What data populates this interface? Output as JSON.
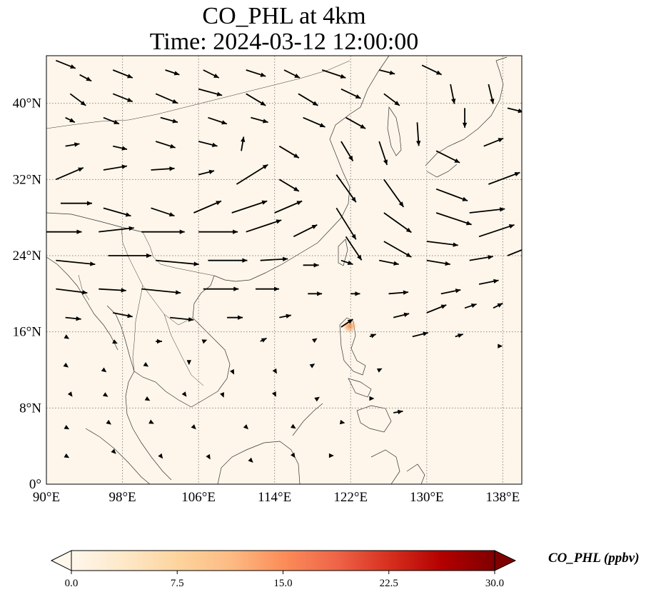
{
  "figure": {
    "title_line1": "CO_PHL at 4km",
    "title_line2": "Time: 2024-03-12 12:00:00"
  },
  "map": {
    "extent": {
      "lon_min": 90,
      "lon_max": 140,
      "lat_min": 0,
      "lat_max": 45
    },
    "background_color": "#fef6ea",
    "gridline_style": "dotted",
    "lon_ticks": [
      {
        "value": 90,
        "label": "90°E"
      },
      {
        "value": 98,
        "label": "98°E"
      },
      {
        "value": 106,
        "label": "106°E"
      },
      {
        "value": 114,
        "label": "114°E"
      },
      {
        "value": 122,
        "label": "122°E"
      },
      {
        "value": 130,
        "label": "130°E"
      },
      {
        "value": 138,
        "label": "138°E"
      }
    ],
    "lat_ticks": [
      {
        "value": 0,
        "label": "0°"
      },
      {
        "value": 8,
        "label": "8°N"
      },
      {
        "value": 16,
        "label": "16°N"
      },
      {
        "value": 24,
        "label": "24°N"
      },
      {
        "value": 32,
        "label": "32°N"
      },
      {
        "value": 40,
        "label": "40°N"
      }
    ],
    "hotspot": {
      "lon": 121.9,
      "lat": 16.6,
      "color": "#f4a460"
    }
  },
  "colorbar": {
    "label": "CO_PHL (ppbv)",
    "min": 0.0,
    "max": 30.0,
    "extend": "both",
    "colormap": "OrRd",
    "colors": [
      "#fff7ec",
      "#fee8c8",
      "#fdd49e",
      "#fdbb84",
      "#fc8d59",
      "#ef6548",
      "#d7301f",
      "#b30000",
      "#7f0000"
    ],
    "ticks": [
      {
        "value": 0.0,
        "label": "0.0"
      },
      {
        "value": 7.5,
        "label": "7.5"
      },
      {
        "value": 15.0,
        "label": "15.0"
      },
      {
        "value": 22.5,
        "label": "22.5"
      },
      {
        "value": 30.0,
        "label": "30.0"
      }
    ]
  },
  "wind_vectors": [
    {
      "lon": 91.0,
      "lat": 44.5,
      "u": 2.5,
      "v": -1.0
    },
    {
      "lon": 93.5,
      "lat": 43.0,
      "u": 1.5,
      "v": -0.8
    },
    {
      "lon": 97.0,
      "lat": 43.5,
      "u": 2.5,
      "v": -1.0
    },
    {
      "lon": 102.5,
      "lat": 43.5,
      "u": 1.8,
      "v": -0.6
    },
    {
      "lon": 106.5,
      "lat": 43.5,
      "u": 2.0,
      "v": -1.0
    },
    {
      "lon": 111.0,
      "lat": 43.5,
      "u": 2.5,
      "v": -0.8
    },
    {
      "lon": 115.0,
      "lat": 43.5,
      "u": 2.0,
      "v": -1.0
    },
    {
      "lon": 119.0,
      "lat": 43.5,
      "u": 3.0,
      "v": -1.0
    },
    {
      "lon": 125.0,
      "lat": 43.5,
      "u": 2.0,
      "v": -0.5
    },
    {
      "lon": 129.5,
      "lat": 44.0,
      "u": 2.5,
      "v": -1.2
    },
    {
      "lon": 92.5,
      "lat": 41.0,
      "u": 2.0,
      "v": -1.5
    },
    {
      "lon": 97.0,
      "lat": 41.0,
      "u": 2.5,
      "v": -1.0
    },
    {
      "lon": 101.5,
      "lat": 41.0,
      "u": 2.8,
      "v": -1.2
    },
    {
      "lon": 106.0,
      "lat": 41.5,
      "u": 3.0,
      "v": -0.8
    },
    {
      "lon": 111.0,
      "lat": 41.0,
      "u": 2.5,
      "v": -1.5
    },
    {
      "lon": 116.5,
      "lat": 41.0,
      "u": 2.5,
      "v": -1.5
    },
    {
      "lon": 121.0,
      "lat": 41.5,
      "u": 2.5,
      "v": -1.2
    },
    {
      "lon": 125.5,
      "lat": 41.0,
      "u": 2.0,
      "v": -1.5
    },
    {
      "lon": 132.5,
      "lat": 42.0,
      "u": 0.5,
      "v": -2.5
    },
    {
      "lon": 136.5,
      "lat": 42.0,
      "u": 0.6,
      "v": -2.5
    },
    {
      "lon": 92.0,
      "lat": 38.5,
      "u": 1.2,
      "v": -0.6
    },
    {
      "lon": 96.0,
      "lat": 38.5,
      "u": 2.0,
      "v": -0.8
    },
    {
      "lon": 102.0,
      "lat": 38.5,
      "u": 2.2,
      "v": -0.6
    },
    {
      "lon": 107.0,
      "lat": 38.5,
      "u": 2.4,
      "v": -0.8
    },
    {
      "lon": 111.5,
      "lat": 38.5,
      "u": 2.2,
      "v": -0.6
    },
    {
      "lon": 117.0,
      "lat": 38.5,
      "u": 2.8,
      "v": -1.2
    },
    {
      "lon": 121.5,
      "lat": 38.5,
      "u": 2.5,
      "v": -1.4
    },
    {
      "lon": 129.0,
      "lat": 38.0,
      "u": 0.2,
      "v": -3.0
    },
    {
      "lon": 134.0,
      "lat": 39.5,
      "u": 0.0,
      "v": -2.5
    },
    {
      "lon": 138.5,
      "lat": 39.5,
      "u": 2.0,
      "v": -0.5
    },
    {
      "lon": 92.0,
      "lat": 35.5,
      "u": 1.8,
      "v": 0.3
    },
    {
      "lon": 97.0,
      "lat": 35.5,
      "u": 1.8,
      "v": -0.4
    },
    {
      "lon": 101.5,
      "lat": 36.0,
      "u": 2.5,
      "v": -0.8
    },
    {
      "lon": 106.0,
      "lat": 36.0,
      "u": 2.4,
      "v": -0.6
    },
    {
      "lon": 110.5,
      "lat": 35.0,
      "u": 0.3,
      "v": 1.8
    },
    {
      "lon": 114.5,
      "lat": 35.5,
      "u": 2.5,
      "v": -1.5
    },
    {
      "lon": 121.0,
      "lat": 36.0,
      "u": 1.5,
      "v": -2.5
    },
    {
      "lon": 125.0,
      "lat": 36.0,
      "u": 1.0,
      "v": -3.0
    },
    {
      "lon": 131.0,
      "lat": 35.0,
      "u": 3.0,
      "v": -1.5
    },
    {
      "lon": 136.0,
      "lat": 35.5,
      "u": 2.5,
      "v": 1.0
    },
    {
      "lon": 91.0,
      "lat": 32.0,
      "u": 3.5,
      "v": 1.5
    },
    {
      "lon": 96.0,
      "lat": 33.0,
      "u": 3.0,
      "v": 0.5
    },
    {
      "lon": 101.0,
      "lat": 33.0,
      "u": 3.0,
      "v": 0.2
    },
    {
      "lon": 106.0,
      "lat": 32.5,
      "u": 2.0,
      "v": 0.5
    },
    {
      "lon": 110.0,
      "lat": 31.5,
      "u": 4.0,
      "v": 2.5
    },
    {
      "lon": 114.5,
      "lat": 32.0,
      "u": 2.5,
      "v": -1.5
    },
    {
      "lon": 120.5,
      "lat": 32.5,
      "u": 2.5,
      "v": -3.5
    },
    {
      "lon": 125.5,
      "lat": 32.0,
      "u": 2.5,
      "v": -3.5
    },
    {
      "lon": 131.0,
      "lat": 31.0,
      "u": 4.0,
      "v": -1.5
    },
    {
      "lon": 136.5,
      "lat": 31.5,
      "u": 4.0,
      "v": 1.5
    },
    {
      "lon": 91.5,
      "lat": 29.5,
      "u": 4.0,
      "v": 0.0
    },
    {
      "lon": 96.0,
      "lat": 29.0,
      "u": 3.5,
      "v": -1.0
    },
    {
      "lon": 101.0,
      "lat": 29.0,
      "u": 3.0,
      "v": -1.0
    },
    {
      "lon": 105.5,
      "lat": 28.5,
      "u": 3.5,
      "v": 1.5
    },
    {
      "lon": 109.5,
      "lat": 28.5,
      "u": 4.5,
      "v": 1.5
    },
    {
      "lon": 114.0,
      "lat": 28.5,
      "u": 3.5,
      "v": 1.5
    },
    {
      "lon": 120.5,
      "lat": 29.0,
      "u": 2.5,
      "v": -4.0
    },
    {
      "lon": 125.5,
      "lat": 28.5,
      "u": 3.5,
      "v": -2.5
    },
    {
      "lon": 131.0,
      "lat": 28.5,
      "u": 4.5,
      "v": -1.5
    },
    {
      "lon": 134.5,
      "lat": 28.5,
      "u": 4.5,
      "v": 0.5
    },
    {
      "lon": 90.0,
      "lat": 26.5,
      "u": 4.5,
      "v": 0.0
    },
    {
      "lon": 95.5,
      "lat": 26.5,
      "u": 4.5,
      "v": 0.5
    },
    {
      "lon": 100.0,
      "lat": 26.5,
      "u": 5.5,
      "v": 0.0
    },
    {
      "lon": 106.0,
      "lat": 26.5,
      "u": 5.0,
      "v": 0.0
    },
    {
      "lon": 111.0,
      "lat": 26.5,
      "u": 4.5,
      "v": 1.5
    },
    {
      "lon": 116.0,
      "lat": 26.0,
      "u": 3.0,
      "v": 1.5
    },
    {
      "lon": 121.5,
      "lat": 26.0,
      "u": 2.0,
      "v": -3.0
    },
    {
      "lon": 125.5,
      "lat": 25.5,
      "u": 3.5,
      "v": -2.0
    },
    {
      "lon": 130.0,
      "lat": 25.5,
      "u": 4.0,
      "v": -0.5
    },
    {
      "lon": 135.5,
      "lat": 26.0,
      "u": 4.5,
      "v": 1.5
    },
    {
      "lon": 91.0,
      "lat": 23.5,
      "u": 5.0,
      "v": -0.5
    },
    {
      "lon": 96.5,
      "lat": 24.0,
      "u": 5.5,
      "v": 0.0
    },
    {
      "lon": 101.5,
      "lat": 23.5,
      "u": 5.5,
      "v": -0.5
    },
    {
      "lon": 107.0,
      "lat": 23.5,
      "u": 5.0,
      "v": 0.0
    },
    {
      "lon": 112.5,
      "lat": 23.5,
      "u": 3.5,
      "v": 0.2
    },
    {
      "lon": 117.0,
      "lat": 23.0,
      "u": 2.0,
      "v": 0.0
    },
    {
      "lon": 121.0,
      "lat": 23.5,
      "u": 1.5,
      "v": -0.5
    },
    {
      "lon": 125.0,
      "lat": 23.5,
      "u": 2.5,
      "v": -0.5
    },
    {
      "lon": 130.0,
      "lat": 23.5,
      "u": 3.0,
      "v": -0.5
    },
    {
      "lon": 134.5,
      "lat": 23.5,
      "u": 3.0,
      "v": 0.5
    },
    {
      "lon": 138.5,
      "lat": 24.0,
      "u": 2.5,
      "v": 1.0
    },
    {
      "lon": 91.0,
      "lat": 20.5,
      "u": 4.0,
      "v": -0.5
    },
    {
      "lon": 95.5,
      "lat": 20.5,
      "u": 3.5,
      "v": -0.2
    },
    {
      "lon": 100.0,
      "lat": 20.5,
      "u": 5.0,
      "v": -0.5
    },
    {
      "lon": 106.5,
      "lat": 20.5,
      "u": 4.5,
      "v": 0.0
    },
    {
      "lon": 112.0,
      "lat": 20.5,
      "u": 3.0,
      "v": 0.0
    },
    {
      "lon": 117.5,
      "lat": 20.0,
      "u": 1.8,
      "v": 0.0
    },
    {
      "lon": 122.0,
      "lat": 20.0,
      "u": 1.2,
      "v": 0.0
    },
    {
      "lon": 126.0,
      "lat": 20.0,
      "u": 2.5,
      "v": 0.2
    },
    {
      "lon": 131.5,
      "lat": 20.0,
      "u": 2.5,
      "v": 0.5
    },
    {
      "lon": 135.5,
      "lat": 21.0,
      "u": 2.5,
      "v": 0.5
    },
    {
      "lon": 92.0,
      "lat": 17.5,
      "u": 2.0,
      "v": -0.2
    },
    {
      "lon": 97.0,
      "lat": 18.0,
      "u": 2.5,
      "v": -0.5
    },
    {
      "lon": 103.0,
      "lat": 17.5,
      "u": 3.0,
      "v": -0.3
    },
    {
      "lon": 109.0,
      "lat": 17.5,
      "u": 2.0,
      "v": 0.0
    },
    {
      "lon": 114.5,
      "lat": 17.5,
      "u": 1.5,
      "v": 0.3
    },
    {
      "lon": 121.0,
      "lat": 16.5,
      "u": 1.5,
      "v": 1.0
    },
    {
      "lon": 126.5,
      "lat": 17.5,
      "u": 2.0,
      "v": 0.5
    },
    {
      "lon": 130.0,
      "lat": 18.0,
      "u": 2.5,
      "v": 1.0
    },
    {
      "lon": 134.0,
      "lat": 18.5,
      "u": 1.5,
      "v": 0.5
    },
    {
      "lon": 137.0,
      "lat": 18.5,
      "u": 1.2,
      "v": 0.6
    },
    {
      "lon": 92.0,
      "lat": 15.5,
      "u": 0.5,
      "v": -0.3
    },
    {
      "lon": 97.0,
      "lat": 15.0,
      "u": 0.6,
      "v": -0.3
    },
    {
      "lon": 101.5,
      "lat": 15.0,
      "u": 0.8,
      "v": 0.0
    },
    {
      "lon": 106.5,
      "lat": 15.0,
      "u": 0.5,
      "v": 0.2
    },
    {
      "lon": 112.5,
      "lat": 15.0,
      "u": 0.8,
      "v": 0.4
    },
    {
      "lon": 118.0,
      "lat": 15.0,
      "u": 0.6,
      "v": 0.4
    },
    {
      "lon": 124.0,
      "lat": 15.5,
      "u": 0.8,
      "v": 0.3
    },
    {
      "lon": 128.5,
      "lat": 15.5,
      "u": 2.0,
      "v": 0.5
    },
    {
      "lon": 133.0,
      "lat": 15.5,
      "u": 1.0,
      "v": 0.3
    },
    {
      "lon": 137.5,
      "lat": 14.5,
      "u": 0.6,
      "v": 0.0
    },
    {
      "lon": 92.0,
      "lat": 12.5,
      "u": 0.4,
      "v": -0.3
    },
    {
      "lon": 96.0,
      "lat": 12.0,
      "u": 0.4,
      "v": -0.3
    },
    {
      "lon": 100.5,
      "lat": 12.5,
      "u": 0.3,
      "v": -0.2
    },
    {
      "lon": 105.0,
      "lat": 13.0,
      "u": 0.0,
      "v": -0.6
    },
    {
      "lon": 109.5,
      "lat": 12.0,
      "u": 0.3,
      "v": -0.6
    },
    {
      "lon": 114.0,
      "lat": 12.0,
      "u": 0.3,
      "v": -0.5
    },
    {
      "lon": 118.0,
      "lat": 12.5,
      "u": 0.3,
      "v": 0.2
    },
    {
      "lon": 125.0,
      "lat": 12.0,
      "u": 0.4,
      "v": 0.2
    },
    {
      "lon": 92.5,
      "lat": 9.5,
      "u": 0.3,
      "v": -0.4
    },
    {
      "lon": 96.0,
      "lat": 9.5,
      "u": 0.6,
      "v": -0.4
    },
    {
      "lon": 100.5,
      "lat": 9.0,
      "u": 0.5,
      "v": -0.3
    },
    {
      "lon": 104.5,
      "lat": 9.5,
      "u": 0.3,
      "v": -0.4
    },
    {
      "lon": 108.5,
      "lat": 9.5,
      "u": 0.2,
      "v": -0.5
    },
    {
      "lon": 114.0,
      "lat": 9.5,
      "u": 0.2,
      "v": -0.4
    },
    {
      "lon": 118.5,
      "lat": 9.0,
      "u": 0.3,
      "v": 0.2
    },
    {
      "lon": 124.0,
      "lat": 9.0,
      "u": 0.6,
      "v": 0.0
    },
    {
      "lon": 126.5,
      "lat": 7.5,
      "u": 1.2,
      "v": 0.2
    },
    {
      "lon": 92.0,
      "lat": 6.0,
      "u": 0.5,
      "v": -0.3
    },
    {
      "lon": 96.5,
      "lat": 6.5,
      "u": 0.4,
      "v": -0.3
    },
    {
      "lon": 101.0,
      "lat": 6.5,
      "u": 0.4,
      "v": -0.2
    },
    {
      "lon": 105.5,
      "lat": 6.0,
      "u": 0.3,
      "v": -0.3
    },
    {
      "lon": 111.0,
      "lat": 6.0,
      "u": 0.3,
      "v": -0.3
    },
    {
      "lon": 116.0,
      "lat": 6.0,
      "u": 0.3,
      "v": -0.2
    },
    {
      "lon": 121.0,
      "lat": 6.5,
      "u": 0.5,
      "v": -0.1
    },
    {
      "lon": 92.0,
      "lat": 3.0,
      "u": 0.5,
      "v": -0.3
    },
    {
      "lon": 97.0,
      "lat": 3.5,
      "u": 0.4,
      "v": -0.4
    },
    {
      "lon": 102.0,
      "lat": 3.0,
      "u": 0.3,
      "v": -0.4
    },
    {
      "lon": 107.0,
      "lat": 3.0,
      "u": 0.3,
      "v": -0.5
    },
    {
      "lon": 111.5,
      "lat": 2.5,
      "u": 0.3,
      "v": -0.3
    },
    {
      "lon": 116.0,
      "lat": 3.0,
      "u": 0.2,
      "v": -0.3
    },
    {
      "lon": 120.0,
      "lat": 3.0,
      "u": 0.3,
      "v": 0.0
    }
  ]
}
